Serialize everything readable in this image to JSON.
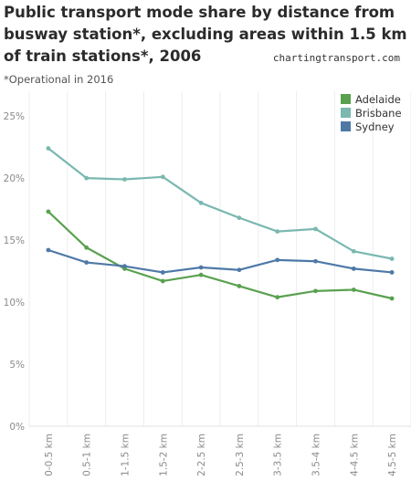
{
  "header": {
    "title": "Public transport mode share by distance from busway station*, excluding areas within 1.5 km of train stations*, 2006",
    "source": "chartingtransport.com",
    "subtitle": "*Operational in 2016"
  },
  "chart_data": {
    "type": "line",
    "title": "Public transport mode share by distance from busway station*, excluding areas within 1.5 km of train stations*, 2006",
    "categories": [
      "0-0.5 km",
      "0.5-1 km",
      "1-1.5 km",
      "1.5-2 km",
      "2-2.5 km",
      "2.5-3 km",
      "3-3.5 km",
      "3.5-4 km",
      "4-4.5 km",
      "4.5-5 km"
    ],
    "series": [
      {
        "name": "Adelaide",
        "color": "#59a14f",
        "values": [
          17.3,
          14.4,
          12.7,
          11.7,
          12.2,
          11.3,
          10.4,
          10.9,
          11.0,
          10.3
        ]
      },
      {
        "name": "Brisbane",
        "color": "#7ab8b0",
        "values": [
          22.4,
          20.0,
          19.9,
          20.1,
          18.0,
          16.8,
          15.7,
          15.9,
          14.1,
          13.5
        ]
      },
      {
        "name": "Sydney",
        "color": "#4e79a7",
        "values": [
          14.2,
          13.2,
          12.9,
          12.4,
          12.8,
          12.6,
          13.4,
          13.3,
          12.7,
          12.4
        ]
      }
    ],
    "y_ticks": [
      "0%",
      "5%",
      "10%",
      "15%",
      "20%",
      "25%"
    ],
    "ylim": [
      0,
      27
    ],
    "y_tick_values": [
      0,
      5,
      10,
      15,
      20,
      25
    ],
    "legend_position": "top-right",
    "grid": "vertical"
  }
}
